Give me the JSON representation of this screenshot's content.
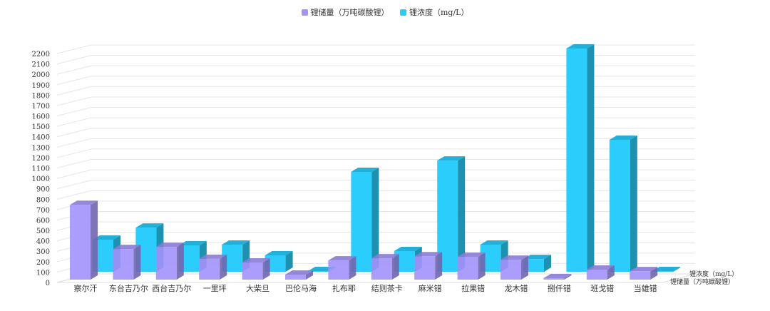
{
  "chart_data": {
    "type": "bar",
    "subtype": "3d-grouped",
    "categories": [
      "察尔汗",
      "东台吉乃尔",
      "西台吉乃尔",
      "一里坪",
      "大柴旦",
      "巴伦马海",
      "扎布耶",
      "结则茶卡",
      "麻米错",
      "拉果错",
      "龙木错",
      "捌仟错",
      "班戈错",
      "当雄错"
    ],
    "series": [
      {
        "name": "锂储量（万吨碳酸锂）",
        "color": "#a393fb",
        "values": [
          720,
          295,
          315,
          200,
          165,
          48,
          185,
          205,
          225,
          220,
          192,
          14,
          96,
          82
        ]
      },
      {
        "name": "锂浓度（mg/L）",
        "color": "#26cdfc",
        "values": [
          316,
          435,
          260,
          267,
          162,
          7,
          984,
          204,
          1096,
          267,
          126,
          2200,
          1300,
          5
        ]
      }
    ],
    "y_ticks": [
      "0",
      "100",
      "200",
      "300",
      "400",
      "500",
      "600",
      "700",
      "800",
      "900",
      "1000",
      "1100",
      "1200",
      "1300",
      "1400",
      "1500",
      "1600",
      "1700",
      "1800",
      "1900",
      "2000",
      "2100",
      "2200"
    ],
    "ylim": [
      0,
      2200
    ],
    "depth_labels": [
      "锂浓度（mg/L）",
      "锂储量（万吨碳酸锂）"
    ],
    "grid": true,
    "legend_position": "top"
  }
}
